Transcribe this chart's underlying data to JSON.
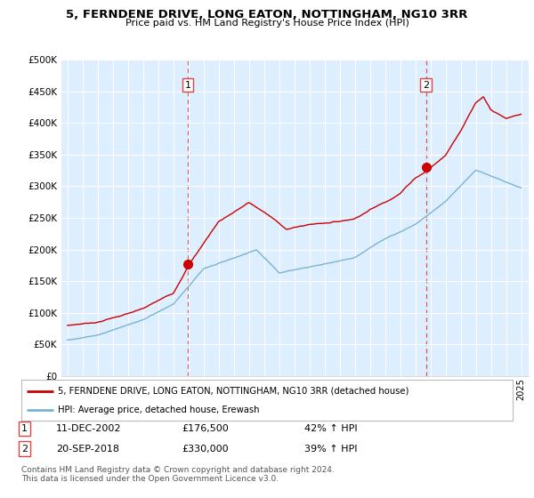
{
  "title": "5, FERNDENE DRIVE, LONG EATON, NOTTINGHAM, NG10 3RR",
  "subtitle": "Price paid vs. HM Land Registry's House Price Index (HPI)",
  "ylim": [
    0,
    500000
  ],
  "yticks": [
    0,
    50000,
    100000,
    150000,
    200000,
    250000,
    300000,
    350000,
    400000,
    450000,
    500000
  ],
  "sale1_date": 2002.95,
  "sale1_price": 176500,
  "sale2_date": 2018.72,
  "sale2_price": 330000,
  "legend_line1": "5, FERNDENE DRIVE, LONG EATON, NOTTINGHAM, NG10 3RR (detached house)",
  "legend_line2": "HPI: Average price, detached house, Erewash",
  "table_row1": [
    "1",
    "11-DEC-2002",
    "£176,500",
    "42% ↑ HPI"
  ],
  "table_row2": [
    "2",
    "20-SEP-2018",
    "£330,000",
    "39% ↑ HPI"
  ],
  "footnote": "Contains HM Land Registry data © Crown copyright and database right 2024.\nThis data is licensed under the Open Government Licence v3.0.",
  "hpi_color": "#7ab3d4",
  "price_color": "#cc0000",
  "vline_color": "#dd4444",
  "chart_bg_color": "#ddeeff",
  "background_color": "#ffffff",
  "grid_color": "#ffffff",
  "xmin": 1995,
  "xmax": 2025
}
